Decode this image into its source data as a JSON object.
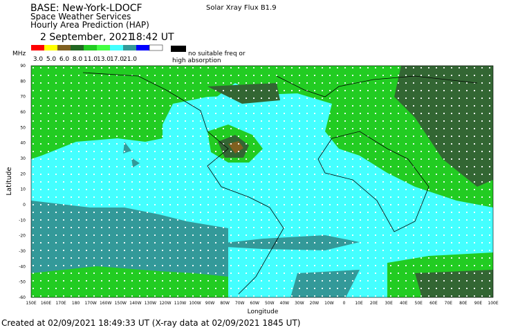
{
  "header": {
    "title": "BASE: New-York-LDOCF",
    "line2": "Space Weather Services",
    "line3": "Hourly Area Prediction (HAP)",
    "date": "2 September, 2021",
    "time": "18:42 UT",
    "flux": "Solar Xray Flux B1.9"
  },
  "legend": {
    "unit": "MHz",
    "labels": [
      "3.0",
      "5.0",
      "6.0",
      "8.0",
      "11.0",
      "13.0",
      "17.0",
      "21.0"
    ],
    "no_freq": [
      "no suitable freq or",
      "high absorption"
    ]
  },
  "axes": {
    "y_label": "Latitude",
    "x_label": "Longitude",
    "lat_ticks": [
      "90",
      "80",
      "70",
      "60",
      "50",
      "40",
      "30",
      "20",
      "10",
      "0",
      "-10",
      "-20",
      "-30",
      "-40",
      "-50",
      "-60"
    ],
    "lon_ticks": [
      "150E",
      "160E",
      "170E",
      "180",
      "170W",
      "160W",
      "150W",
      "140W",
      "130W",
      "120W",
      "110W",
      "100W",
      "90W",
      "80W",
      "70W",
      "60W",
      "50W",
      "40W",
      "30W",
      "20W",
      "10W",
      "0",
      "10E",
      "20E",
      "30E",
      "40E",
      "50E",
      "60E",
      "70E",
      "80E",
      "90E",
      "100E"
    ]
  },
  "footer": "Created at 02/09/2021 18:49:33 UT (X-ray data at 02/09/2021 1845 UT)"
}
